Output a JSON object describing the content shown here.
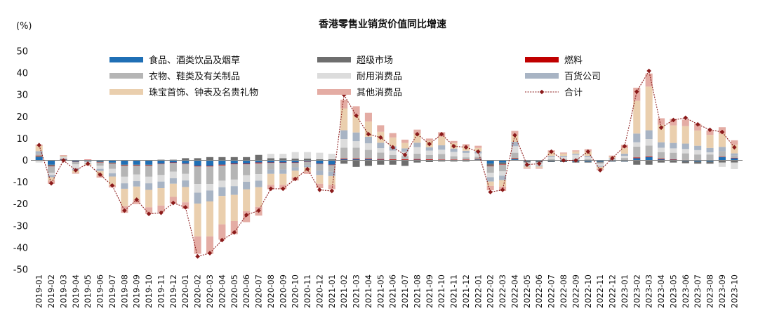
{
  "chart_data": {
    "type": "bar",
    "title": "香港零售业销货价值同比增速",
    "ylabel": "(%)",
    "ylim": [
      -50,
      50
    ],
    "yticks": [
      50,
      40,
      30,
      20,
      10,
      0,
      -10,
      -20,
      -30,
      -40,
      -50
    ],
    "grid": false,
    "legend_position": "top",
    "categories": [
      "2019-01",
      "2019-02",
      "2019-03",
      "2019-04",
      "2019-05",
      "2019-06",
      "2019-07",
      "2019-08",
      "2019-09",
      "2019-10",
      "2019-11",
      "2019-12",
      "2020-01",
      "2020-02",
      "2020-03",
      "2020-04",
      "2020-05",
      "2020-06",
      "2020-07",
      "2020-08",
      "2020-09",
      "2020-10",
      "2020-11",
      "2020-12",
      "2021-01",
      "2021-02",
      "2021-03",
      "2021-04",
      "2021-05",
      "2021-06",
      "2021-07",
      "2021-08",
      "2021-09",
      "2021-10",
      "2021-11",
      "2021-12",
      "2022-01",
      "2022-02",
      "2022-03",
      "2022-04",
      "2022-05",
      "2022-06",
      "2022-07",
      "2022-08",
      "2022-09",
      "2022-10",
      "2022-11",
      "2022-12",
      "2023-01",
      "2023-02",
      "2023-03",
      "2023-04",
      "2023-05",
      "2023-06",
      "2023-07",
      "2023-08",
      "2023-09",
      "2023-10"
    ],
    "series": [
      {
        "name": "食品、酒类饮品及烟草",
        "color": "#1f6fb5",
        "values": [
          1.5,
          -2,
          0.3,
          -0.5,
          -0.3,
          -0.5,
          -1,
          -2,
          -2,
          -2,
          -1.5,
          -1,
          -1.5,
          -2.5,
          -2.5,
          -2,
          -1.5,
          -1.5,
          -1,
          -1,
          -1,
          -1,
          -0.5,
          -1.5,
          -2,
          0.5,
          0.5,
          0.5,
          0.3,
          0.2,
          0.2,
          0.3,
          0.2,
          0.2,
          0.2,
          0.2,
          0.3,
          -1.5,
          -1,
          0.5,
          -0.3,
          -0.3,
          -0.3,
          -0.3,
          -0.5,
          -0.5,
          -0.5,
          -0.3,
          -0.3,
          1,
          1.5,
          0.5,
          0.3,
          -0.3,
          -0.5,
          -0.5,
          1.5,
          1
        ]
      },
      {
        "name": "超级市场",
        "color": "#6e6e6e",
        "values": [
          0.5,
          -0.5,
          0.2,
          -0.2,
          0.2,
          -0.3,
          -0.3,
          -0.3,
          -0.3,
          -0.3,
          0.3,
          0.3,
          1,
          1,
          1.5,
          1.5,
          1.5,
          1.5,
          2.5,
          1,
          1,
          0.8,
          0.8,
          0.5,
          0.5,
          -1.5,
          -3,
          -2.5,
          -2,
          -2,
          -2.5,
          -1,
          -0.8,
          -0.5,
          -0.5,
          -0.5,
          0.2,
          -1,
          -0.8,
          0.3,
          -0.5,
          -0.5,
          -0.5,
          -0.5,
          -0.5,
          -0.5,
          -0.5,
          -0.3,
          -0.3,
          -2,
          -2,
          -1,
          -1,
          -1,
          -1,
          -1,
          -1,
          -1
        ]
      },
      {
        "name": "燃料",
        "color": "#c00000",
        "values": [
          0.2,
          -0.2,
          0.1,
          -0.1,
          0.1,
          -0.1,
          -0.1,
          -0.2,
          -0.2,
          -0.2,
          -0.2,
          -0.2,
          -0.2,
          -0.3,
          -0.3,
          -0.3,
          -0.3,
          -0.3,
          -0.3,
          -0.2,
          -0.2,
          -0.2,
          -0.2,
          -0.2,
          -0.2,
          0.3,
          0.3,
          0.3,
          0.3,
          0.3,
          0.3,
          0.3,
          0.3,
          0.2,
          0.2,
          0.2,
          0.2,
          -0.2,
          -0.2,
          0.2,
          0.1,
          0.1,
          0.1,
          0.1,
          0.1,
          0.1,
          0.1,
          0.1,
          0.1,
          0.3,
          0.3,
          0.3,
          0.2,
          0.2,
          0.2,
          0.2,
          0.2,
          0.2
        ]
      },
      {
        "name": "衣物、鞋类及有关制品",
        "color": "#b5b5b5",
        "values": [
          1,
          -3,
          0.3,
          -1,
          -0.5,
          -1.5,
          -2.5,
          -5,
          -4,
          -5,
          -5,
          -4,
          -4.5,
          -8,
          -8,
          -7,
          -7,
          -5,
          -5,
          -3,
          -3,
          -2,
          -1.5,
          -3,
          -3,
          5,
          5,
          4,
          3,
          2,
          1.5,
          2.5,
          2,
          2.5,
          1.5,
          1,
          1,
          -3,
          -3,
          2.5,
          -0.5,
          -0.5,
          0.5,
          0.5,
          0.5,
          0.5,
          -0.5,
          0.3,
          1,
          5,
          5,
          3,
          3,
          3,
          2.5,
          2.5,
          2.5,
          1
        ]
      },
      {
        "name": "耐用消费品",
        "color": "#dcdcdc",
        "values": [
          -1,
          -1,
          0.5,
          -2,
          -0.5,
          -1.5,
          -2,
          -3,
          -3,
          -3,
          -3,
          -3,
          -3,
          -4,
          -3,
          -3,
          -3,
          -3,
          -3,
          2,
          2,
          3,
          3,
          3,
          2.5,
          4,
          3,
          3,
          2,
          2,
          2,
          3,
          2,
          2,
          2,
          2,
          1.5,
          -2,
          -2,
          3,
          -1,
          -1,
          1,
          1,
          2,
          1,
          -1,
          0.5,
          1,
          2,
          3,
          2,
          2,
          2,
          2,
          1,
          -2,
          -3
        ]
      },
      {
        "name": "百货公司",
        "color": "#a8b4c4",
        "values": [
          1,
          -1,
          0.2,
          -0.8,
          -0.3,
          -1,
          -1.5,
          -2.5,
          -2.5,
          -3,
          -3,
          -2.5,
          -3,
          -5,
          -5,
          -4,
          -4,
          -3.5,
          -3,
          -2,
          -2,
          -1.5,
          -1,
          -2,
          -2,
          4,
          4,
          3,
          2.5,
          2,
          1.5,
          2,
          1.5,
          2,
          1.5,
          1,
          1,
          -2,
          -2,
          2,
          -0.5,
          -0.5,
          0.5,
          0.5,
          0.5,
          0.5,
          -0.5,
          0.3,
          1,
          4,
          4,
          2.5,
          2.5,
          2.5,
          2,
          2,
          2,
          1
        ]
      },
      {
        "name": "珠宝首饰、钟表及名贵礼物",
        "color": "#eacfae",
        "values": [
          2.5,
          -1.5,
          0.5,
          -1,
          -0.5,
          -2,
          -4,
          -8,
          -6,
          -8,
          -8,
          -6,
          -7,
          -15,
          -16,
          -13,
          -12,
          -10,
          -9,
          -5,
          -5,
          -3,
          -2,
          -4,
          -4,
          10,
          8,
          7,
          5,
          4,
          2.5,
          4,
          3,
          4,
          2.5,
          2,
          1.5,
          -2,
          -3,
          3,
          -0.5,
          -0.5,
          1.5,
          1,
          1,
          2,
          -1,
          0.5,
          2.5,
          15,
          20,
          8,
          8,
          8,
          7,
          6,
          6,
          4
        ]
      },
      {
        "name": "其他消费品",
        "color": "#e4aca4",
        "values": [
          0.5,
          -1.5,
          0.3,
          -0.5,
          -0.3,
          -1,
          -1,
          -3,
          -2,
          -3,
          -3,
          -3,
          -3,
          -8,
          -8,
          -7,
          -6,
          -5,
          -4,
          -2,
          -2,
          -1.5,
          -1,
          -2,
          -2,
          4,
          4,
          4,
          3,
          2,
          1.5,
          2,
          1,
          2,
          1,
          1,
          1,
          -2,
          -2,
          2,
          -0.5,
          -0.5,
          1,
          0.5,
          0.5,
          1,
          -0.5,
          0.5,
          1.5,
          6,
          6,
          3,
          3,
          3,
          3,
          2,
          3,
          2
        ]
      }
    ],
    "total": {
      "name": "合计",
      "color": "#8b1a1a",
      "values": [
        7,
        -10.5,
        0,
        -4.5,
        -1.5,
        -6.5,
        -11.5,
        -23,
        -18,
        -24.5,
        -24,
        -19.5,
        -21.5,
        -44,
        -42.5,
        -36.5,
        -33,
        -25,
        -23,
        -13,
        -13,
        -8.5,
        -4,
        -13.5,
        -14,
        30,
        20.5,
        12,
        10.5,
        6,
        2.5,
        12,
        7.5,
        12,
        6.5,
        6,
        4,
        -14.5,
        -13.5,
        11.5,
        -2,
        -1.5,
        4,
        0,
        0,
        4,
        -4.5,
        1,
        6.5,
        31.5,
        41,
        15,
        18.5,
        19.5,
        16.5,
        14,
        13,
        6
      ]
    }
  }
}
